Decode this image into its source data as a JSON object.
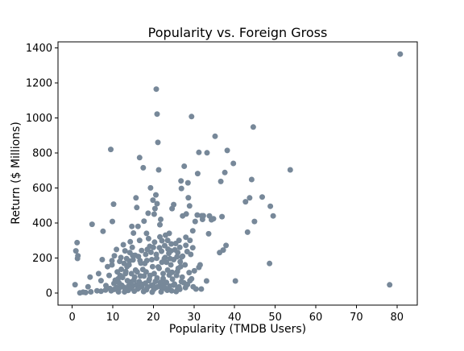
{
  "chart_data": {
    "type": "scatter",
    "title": "Popularity vs. Foreign Gross",
    "xlabel": "Popularity (TMDB Users)",
    "ylabel": "Return ($ Millions)",
    "xlim": [
      -3.5,
      85
    ],
    "ylim": [
      -70,
      1435
    ],
    "xticks": [
      0,
      10,
      20,
      30,
      40,
      50,
      60,
      70,
      80
    ],
    "yticks": [
      0,
      200,
      400,
      600,
      800,
      1000,
      1200,
      1400
    ],
    "grid": false,
    "legend": "none",
    "point_color": "#778899",
    "points": [
      [
        80.8,
        1365
      ],
      [
        78.2,
        46
      ],
      [
        53.7,
        703
      ],
      [
        49.5,
        440
      ],
      [
        48.8,
        495
      ],
      [
        48.6,
        168
      ],
      [
        46.8,
        548
      ],
      [
        44.9,
        408
      ],
      [
        44.6,
        948
      ],
      [
        44.2,
        648
      ],
      [
        43.7,
        543
      ],
      [
        43.2,
        347
      ],
      [
        42.7,
        521
      ],
      [
        40.2,
        68
      ],
      [
        39.7,
        740
      ],
      [
        38.2,
        814
      ],
      [
        37.9,
        271
      ],
      [
        37.6,
        688
      ],
      [
        37.2,
        245
      ],
      [
        36.9,
        436
      ],
      [
        36.6,
        637
      ],
      [
        36.3,
        230
      ],
      [
        35.2,
        895
      ],
      [
        34.8,
        424
      ],
      [
        34.3,
        418
      ],
      [
        33.8,
        440
      ],
      [
        33.6,
        338
      ],
      [
        33.2,
        801
      ],
      [
        33.1,
        68
      ],
      [
        32.3,
        441
      ],
      [
        32.1,
        420
      ],
      [
        31.9,
        441
      ],
      [
        31.8,
        22
      ],
      [
        31.2,
        803
      ],
      [
        30.9,
        682
      ],
      [
        30.8,
        445
      ],
      [
        30.3,
        408
      ],
      [
        29.7,
        355
      ],
      [
        29.7,
        258
      ],
      [
        29.4,
        1008
      ],
      [
        29.2,
        220
      ],
      [
        29.0,
        300
      ],
      [
        28.9,
        497
      ],
      [
        28.6,
        544
      ],
      [
        28.5,
        629
      ],
      [
        28.1,
        451
      ],
      [
        28.0,
        318
      ],
      [
        27.6,
        724
      ],
      [
        27.2,
        440
      ],
      [
        27.0,
        205
      ],
      [
        26.9,
        597
      ],
      [
        26.8,
        640
      ],
      [
        26.5,
        260
      ],
      [
        26.3,
        300
      ],
      [
        26.0,
        230
      ],
      [
        25.5,
        282
      ],
      [
        25.0,
        505
      ],
      [
        24.6,
        482
      ],
      [
        24.3,
        240
      ],
      [
        23.9,
        340
      ],
      [
        23.5,
        300
      ],
      [
        23.2,
        175
      ],
      [
        22.9,
        202
      ],
      [
        22.4,
        110
      ],
      [
        22.1,
        298
      ],
      [
        21.8,
        420
      ],
      [
        21.6,
        390
      ],
      [
        21.3,
        703
      ],
      [
        21.1,
        860
      ],
      [
        20.9,
        1022
      ],
      [
        20.7,
        1165
      ],
      [
        20.9,
        510
      ],
      [
        20.6,
        560
      ],
      [
        20.4,
        482
      ],
      [
        20.2,
        450
      ],
      [
        19.9,
        530
      ],
      [
        19.3,
        600
      ],
      [
        18.7,
        455
      ],
      [
        18.3,
        340
      ],
      [
        17.7,
        410
      ],
      [
        17.5,
        715
      ],
      [
        16.6,
        773
      ],
      [
        16.2,
        380
      ],
      [
        15.9,
        488
      ],
      [
        15.7,
        543
      ],
      [
        15.1,
        342
      ],
      [
        14.7,
        380
      ],
      [
        14.3,
        292
      ],
      [
        14.1,
        182
      ],
      [
        13.2,
        122
      ],
      [
        12.6,
        275
      ],
      [
        11.3,
        80
      ],
      [
        10.9,
        248
      ],
      [
        9.5,
        820
      ],
      [
        10.2,
        507
      ],
      [
        10.4,
        212
      ],
      [
        9.9,
        408
      ],
      [
        9.8,
        160
      ],
      [
        7.6,
        352
      ],
      [
        7.4,
        190
      ],
      [
        6.5,
        110
      ],
      [
        4.9,
        392
      ],
      [
        4.4,
        90
      ],
      [
        3.9,
        35
      ],
      [
        1.4,
        212
      ],
      [
        1.2,
        287
      ],
      [
        1.3,
        197
      ],
      [
        0.9,
        240
      ],
      [
        0.7,
        47
      ],
      [
        1.9,
        0
      ],
      [
        2.7,
        4
      ],
      [
        3.3,
        2
      ],
      [
        4.6,
        6
      ],
      [
        6.1,
        12
      ],
      [
        7.1,
        9
      ],
      [
        8.2,
        16
      ],
      [
        9.3,
        25
      ],
      [
        10.4,
        20
      ],
      [
        11.6,
        28
      ],
      [
        12.7,
        32
      ],
      [
        13.8,
        14
      ],
      [
        14.9,
        40
      ],
      [
        16.1,
        22
      ],
      [
        17.2,
        36
      ],
      [
        18.3,
        18
      ],
      [
        19.5,
        42
      ],
      [
        20.6,
        30
      ],
      [
        21.7,
        45
      ],
      [
        22.8,
        26
      ],
      [
        24.0,
        38
      ],
      [
        25.2,
        50
      ],
      [
        26.3,
        34
      ],
      [
        27.5,
        58
      ],
      [
        29.0,
        70
      ],
      [
        7.1,
        70
      ],
      [
        8.3,
        42
      ],
      [
        9.1,
        100
      ],
      [
        10.3,
        54
      ],
      [
        11.1,
        120
      ],
      [
        12.4,
        88
      ],
      [
        13.5,
        150
      ],
      [
        14.5,
        62
      ],
      [
        15.6,
        130
      ],
      [
        16.8,
        96
      ],
      [
        17.9,
        168
      ],
      [
        19.0,
        78
      ],
      [
        20.2,
        110
      ],
      [
        21.2,
        148
      ],
      [
        22.4,
        82
      ],
      [
        23.5,
        130
      ],
      [
        24.6,
        118
      ],
      [
        25.7,
        100
      ],
      [
        26.7,
        150
      ],
      [
        27.8,
        160
      ],
      [
        28.8,
        116
      ],
      [
        30.1,
        126
      ],
      [
        31.2,
        146
      ],
      [
        8.7,
        150
      ],
      [
        9.8,
        184
      ],
      [
        10.9,
        30
      ],
      [
        12.0,
        202
      ],
      [
        13.1,
        110
      ],
      [
        14.2,
        230
      ],
      [
        15.2,
        72
      ],
      [
        16.3,
        208
      ],
      [
        17.4,
        134
      ],
      [
        18.5,
        248
      ],
      [
        19.6,
        190
      ],
      [
        20.7,
        220
      ],
      [
        21.7,
        60
      ],
      [
        22.8,
        270
      ],
      [
        23.9,
        102
      ],
      [
        25.0,
        190
      ],
      [
        26.1,
        140
      ],
      [
        27.2,
        210
      ],
      [
        28.3,
        236
      ],
      [
        29.4,
        80
      ],
      [
        31.5,
        160
      ],
      [
        11.5,
        58
      ],
      [
        12.8,
        168
      ],
      [
        13.9,
        40
      ],
      [
        15.0,
        188
      ],
      [
        16.0,
        120
      ],
      [
        17.0,
        50
      ],
      [
        18.1,
        220
      ],
      [
        19.2,
        100
      ],
      [
        20.3,
        290
      ],
      [
        21.4,
        140
      ],
      [
        22.5,
        52
      ],
      [
        23.6,
        250
      ],
      [
        24.7,
        78
      ],
      [
        25.8,
        206
      ],
      [
        26.9,
        64
      ],
      [
        28.0,
        272
      ],
      [
        13.0,
        240
      ],
      [
        14.8,
        260
      ],
      [
        16.6,
        300
      ],
      [
        18.8,
        310
      ],
      [
        20.0,
        260
      ],
      [
        21.6,
        320
      ],
      [
        23.0,
        330
      ],
      [
        24.4,
        280
      ],
      [
        15.4,
        90
      ],
      [
        16.9,
        170
      ],
      [
        18.0,
        55
      ],
      [
        19.8,
        150
      ],
      [
        20.9,
        85
      ],
      [
        22.1,
        175
      ],
      [
        23.2,
        60
      ],
      [
        24.3,
        160
      ],
      [
        10.6,
        72
      ],
      [
        11.8,
        100
      ],
      [
        12.2,
        44
      ],
      [
        13.6,
        70
      ],
      [
        14.6,
        110
      ],
      [
        15.8,
        46
      ],
      [
        16.5,
        64
      ],
      [
        17.7,
        96
      ],
      [
        18.9,
        70
      ],
      [
        19.9,
        45
      ],
      [
        20.5,
        66
      ],
      [
        21.1,
        36
      ],
      [
        22.2,
        24
      ],
      [
        23.4,
        15
      ],
      [
        24.5,
        12
      ],
      [
        25.6,
        8
      ],
      [
        26.5,
        20
      ],
      [
        27.1,
        90
      ],
      [
        28.4,
        48
      ],
      [
        29.8,
        35
      ],
      [
        12.9,
        6
      ],
      [
        15.3,
        10
      ],
      [
        17.6,
        8
      ],
      [
        19.7,
        4
      ],
      [
        21.9,
        6
      ],
      [
        9.6,
        12
      ],
      [
        11.4,
        6
      ],
      [
        13.3,
        20
      ],
      [
        14.4,
        26
      ],
      [
        16.4,
        28
      ],
      [
        18.6,
        34
      ],
      [
        20.1,
        20
      ],
      [
        22.6,
        38
      ],
      [
        24.9,
        44
      ],
      [
        26.0,
        26
      ],
      [
        27.9,
        30
      ],
      [
        30.5,
        22
      ],
      [
        12.1,
        135
      ],
      [
        14.0,
        160
      ],
      [
        15.5,
        215
      ],
      [
        17.1,
        242
      ],
      [
        18.4,
        185
      ],
      [
        19.4,
        232
      ],
      [
        20.8,
        198
      ],
      [
        22.0,
        238
      ],
      [
        23.8,
        226
      ],
      [
        25.3,
        246
      ],
      [
        26.6,
        178
      ],
      [
        11.7,
        180
      ],
      [
        13.4,
        196
      ],
      [
        14.9,
        214
      ],
      [
        16.7,
        184
      ],
      [
        18.2,
        120
      ],
      [
        19.1,
        266
      ],
      [
        21.5,
        258
      ],
      [
        22.7,
        196
      ],
      [
        24.1,
        196
      ],
      [
        25.9,
        122
      ]
    ]
  }
}
